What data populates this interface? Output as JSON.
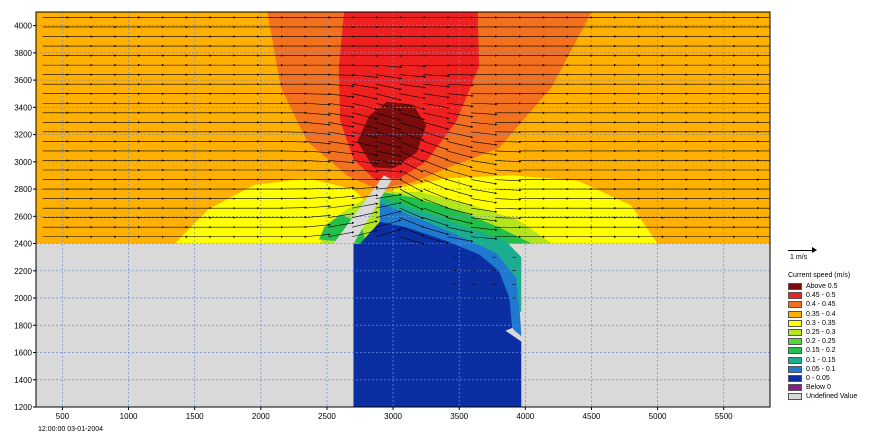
{
  "chart_data": {
    "type": "heatmap",
    "title": "",
    "xlabel": "",
    "ylabel": "",
    "xlim": [
      300,
      5850
    ],
    "ylim": [
      1200,
      4100
    ],
    "x_ticks": [
      500,
      1000,
      1500,
      2000,
      2500,
      3000,
      3500,
      4000,
      4500,
      5000,
      5500
    ],
    "y_ticks": [
      1200,
      1400,
      1600,
      1800,
      2000,
      2200,
      2400,
      2600,
      2800,
      3000,
      3200,
      3400,
      3600,
      3800,
      4000
    ],
    "grid": true,
    "land_boundary_y": 2400,
    "channel_x": [
      2700,
      3970
    ],
    "plot_area_fill": "#D9D9D9",
    "timestamp": "12:00:00 03-01-2004",
    "legend_title": "Current speed (m/s)",
    "legend_position": "right",
    "legend": [
      {
        "label": "Above   0.5",
        "color": "#7A0C0C"
      },
      {
        "label": "0.45 -   0.5",
        "color": "#EE2020"
      },
      {
        "label": "0.4 - 0.45",
        "color": "#F2701E"
      },
      {
        "label": "0.35 -   0.4",
        "color": "#FFB000"
      },
      {
        "label": "0.3 - 0.35",
        "color": "#FFFF00"
      },
      {
        "label": "0.25 -   0.3",
        "color": "#B5E61D"
      },
      {
        "label": "0.2 - 0.25",
        "color": "#55D835"
      },
      {
        "label": "0.15 -   0.2",
        "color": "#22C04A"
      },
      {
        "label": "0.1 - 0.15",
        "color": "#1AAE8E"
      },
      {
        "label": "0.05 -   0.1",
        "color": "#1F7ACF"
      },
      {
        "label": "0 - 0.05",
        "color": "#0B2FA3"
      },
      {
        "label": "Below     0",
        "color": "#8B1A8B"
      },
      {
        "label": "Undefined Value",
        "color": "#D9D9D9"
      }
    ],
    "vector_scale_label": "1 m/s",
    "dominant_flow_direction": "east"
  }
}
